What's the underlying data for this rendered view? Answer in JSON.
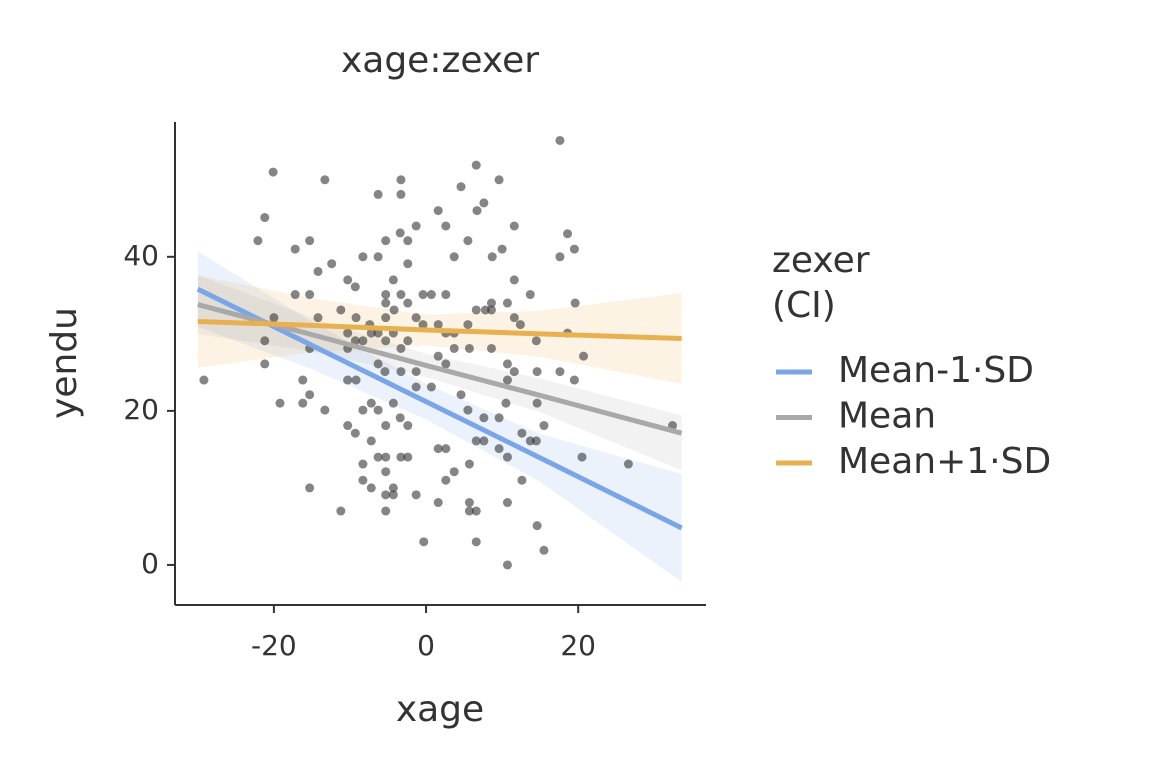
{
  "chart_data": {
    "type": "scatter",
    "title": "xage:zexer",
    "xlabel": "xage",
    "ylabel": "yendu",
    "legend_title": [
      "zexer",
      "(CI)"
    ],
    "xlim": [
      -33,
      36.8
    ],
    "ylim": [
      -5.2,
      57.5
    ],
    "xticks": [
      -20,
      0,
      20
    ],
    "yticks": [
      0,
      20,
      40
    ],
    "grid": false,
    "point_color": "#333333",
    "x": [
      17.6,
      6.6,
      -20.1,
      -13.3,
      -3.3,
      9.6,
      4.6,
      -6.3,
      -3.3,
      7.6,
      1.6,
      6.7,
      -21.2,
      -1.3,
      11.6,
      2.6,
      -3.4,
      18.6,
      -5.3,
      -15.3,
      -22.1,
      5.5,
      -2.4,
      10.0,
      19.5,
      -17.2,
      -8.3,
      -6.3,
      3.7,
      8.7,
      17.6,
      -2.4,
      -12.4,
      -14.2,
      -10.3,
      -4.3,
      11.6,
      -9.3,
      -5.3,
      -3.3,
      -0.4,
      0.7,
      2.6,
      13.7,
      -17.2,
      -15.3,
      -5.3,
      -2.4,
      8.6,
      10.7,
      19.6,
      -11.2,
      -4.2,
      6.6,
      7.8,
      8.6,
      -20.0,
      -14.2,
      -9.2,
      -5.3,
      -1.3,
      11.6,
      12.4,
      -7.4,
      -0.4,
      1.6,
      5.5,
      -10.3,
      -7.2,
      -6.3,
      -4.3,
      2.6,
      3.7,
      18.6,
      -21.2,
      -9.3,
      -8.3,
      -5.3,
      -2.4,
      14.5,
      -10.3,
      -15.3,
      -3.3,
      3.7,
      5.7,
      8.6,
      1.6,
      20.7,
      -21.2,
      -6.3,
      2.6,
      10.7,
      -5.4,
      -3.3,
      -1.3,
      11.6,
      17.6,
      14.6,
      -16.2,
      -29.2,
      -10.3,
      -9.2,
      0.7,
      -1.3,
      10.7,
      19.5,
      4.6,
      -15.3,
      -19.2,
      -16.2,
      -7.2,
      -4.3,
      10.5,
      14.6,
      -13.3,
      -8.3,
      -6.3,
      5.5,
      -3.4,
      7.6,
      9.6,
      -2.4,
      -10.3,
      -5.3,
      15.5,
      -9.3,
      12.6,
      6.6,
      7.6,
      -7.2,
      13.7,
      14.5,
      1.6,
      2.6,
      9.6,
      -6.3,
      -5.3,
      -3.3,
      -2.4,
      10.7,
      20.5,
      -8.3,
      5.7,
      26.6,
      -5.3,
      3.7,
      -8.3,
      12.6,
      -15.3,
      -7.2,
      -4.3,
      -5.3,
      -4.3,
      -1.3,
      1.6,
      5.7,
      10.7,
      -11.2,
      -5.3,
      5.7,
      6.6,
      14.6,
      -0.3,
      6.6,
      15.5,
      10.7,
      32.4,
      2.6
    ],
    "y": [
      55.1,
      51.9,
      51.0,
      50.0,
      50.0,
      50.0,
      49.1,
      48.1,
      48.1,
      47.0,
      46.0,
      46.0,
      45.1,
      44.0,
      44.0,
      44.0,
      43.1,
      43.0,
      42.1,
      42.1,
      42.1,
      42.1,
      42.1,
      41.0,
      41.0,
      41.0,
      40.0,
      40.0,
      40.0,
      40.0,
      40.0,
      39.1,
      39.1,
      38.1,
      37.0,
      37.0,
      37.0,
      36.1,
      35.1,
      35.1,
      35.1,
      35.1,
      35.1,
      35.1,
      35.1,
      35.1,
      34.0,
      34.0,
      34.0,
      34.0,
      34.0,
      33.1,
      33.1,
      33.1,
      33.1,
      33.1,
      32.1,
      32.1,
      32.1,
      32.1,
      32.1,
      32.1,
      31.2,
      31.2,
      31.2,
      31.2,
      31.2,
      30.1,
      30.1,
      30.1,
      30.1,
      30.1,
      30.1,
      30.1,
      29.1,
      29.1,
      29.1,
      29.1,
      29.1,
      29.1,
      28.1,
      28.1,
      28.1,
      28.1,
      28.1,
      28.1,
      27.1,
      27.1,
      26.1,
      26.1,
      26.1,
      26.1,
      25.1,
      25.1,
      25.1,
      25.1,
      25.1,
      25.1,
      24.0,
      24.0,
      24.0,
      24.0,
      23.1,
      23.1,
      24.0,
      24.0,
      22.1,
      22.1,
      21.0,
      21.0,
      21.0,
      21.0,
      21.0,
      21.0,
      20.1,
      20.1,
      20.1,
      20.1,
      19.1,
      19.1,
      19.1,
      18.1,
      18.1,
      18.1,
      18.1,
      17.1,
      17.1,
      16.1,
      16.1,
      16.1,
      16.1,
      16.1,
      15.1,
      15.1,
      15.1,
      14.0,
      14.0,
      14.0,
      14.0,
      14.0,
      14.0,
      13.1,
      13.1,
      13.1,
      12.1,
      12.1,
      11.0,
      11.0,
      10.0,
      10.0,
      10.0,
      9.1,
      9.1,
      9.1,
      8.1,
      8.1,
      8.1,
      7.0,
      7.0,
      7.0,
      7.0,
      5.1,
      3.0,
      3.0,
      1.9,
      0.0,
      18.1,
      11.0
    ],
    "series": [
      {
        "name": "Mean-1·SD",
        "color": "#7aa6e8",
        "x": [
          -30,
          -15,
          0,
          15,
          33.6
        ],
        "values": [
          35.8,
          28.5,
          21.2,
          13.9,
          4.8
        ],
        "lower": [
          30.9,
          25.4,
          18.9,
          10.8,
          -2.2
        ],
        "upper": [
          40.7,
          31.6,
          23.5,
          17.0,
          11.8
        ]
      },
      {
        "name": "Mean",
        "color": "#a9a9a9",
        "x": [
          -30,
          -15,
          0,
          15,
          33.6
        ],
        "values": [
          33.8,
          29.9,
          25.9,
          22.0,
          17.1
        ],
        "lower": [
          30.0,
          27.7,
          24.4,
          19.8,
          12.3
        ],
        "upper": [
          37.6,
          32.1,
          27.4,
          24.2,
          19.4
        ]
      },
      {
        "name": "Mean+1·SD",
        "color": "#e8b04f",
        "x": [
          -30,
          -15,
          0,
          15,
          33.6
        ],
        "values": [
          31.6,
          31.1,
          30.5,
          30.0,
          29.4
        ],
        "lower": [
          25.6,
          27.6,
          28.5,
          27.0,
          23.5
        ],
        "upper": [
          37.6,
          34.6,
          32.5,
          33.0,
          35.3
        ]
      }
    ]
  }
}
